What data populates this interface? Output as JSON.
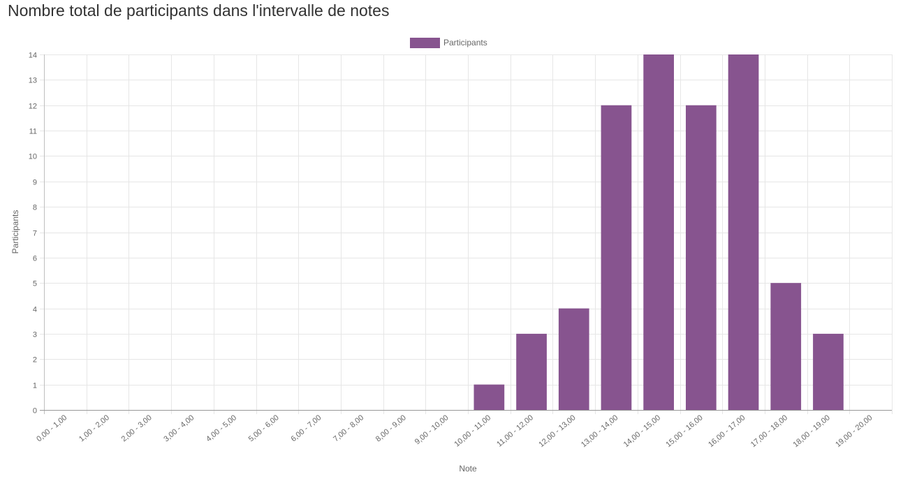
{
  "page": {
    "title": "Nombre total de participants dans l'intervalle de notes"
  },
  "chart_data": {
    "type": "bar",
    "title": "",
    "xlabel": "Note",
    "ylabel": "Participants",
    "categories": [
      "0,00 - 1,00",
      "1,00 - 2,00",
      "2,00 - 3,00",
      "3,00 - 4,00",
      "4,00 - 5,00",
      "5,00 - 6,00",
      "6,00 - 7,00",
      "7,00 - 8,00",
      "8,00 - 9,00",
      "9,00 - 10,00",
      "10,00 - 11,00",
      "11,00 - 12,00",
      "12,00 - 13,00",
      "13,00 - 14,00",
      "14,00 - 15,00",
      "15,00 - 16,00",
      "16,00 - 17,00",
      "17,00 - 18,00",
      "18,00 - 19,00",
      "19,00 - 20,00"
    ],
    "series": [
      {
        "name": "Participants",
        "values": [
          0,
          0,
          0,
          0,
          0,
          0,
          0,
          0,
          0,
          0,
          1,
          3,
          4,
          12,
          14,
          12,
          14,
          5,
          3,
          0
        ],
        "color": "#87548f"
      }
    ],
    "ylim": [
      0,
      14
    ],
    "yticks": [
      0,
      1,
      2,
      3,
      4,
      5,
      6,
      7,
      8,
      9,
      10,
      11,
      12,
      13,
      14
    ],
    "grid": true,
    "legend": "top-center"
  }
}
